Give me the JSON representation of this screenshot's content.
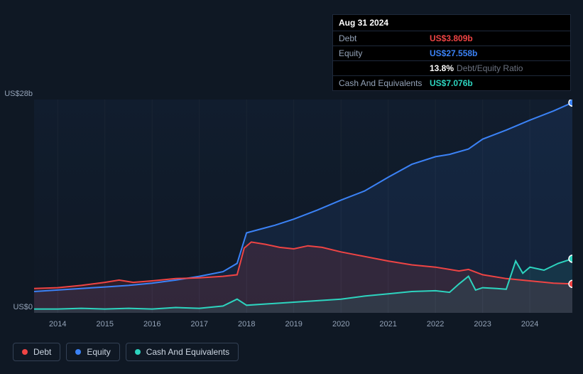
{
  "tooltip": {
    "date": "Aug 31 2024",
    "debt_label": "Debt",
    "debt_value": "US$3.809b",
    "equity_label": "Equity",
    "equity_value": "US$27.558b",
    "ratio_value": "13.8%",
    "ratio_label": "Debt/Equity Ratio",
    "cash_label": "Cash And Equivalents",
    "cash_value": "US$7.076b"
  },
  "chart": {
    "type": "area",
    "background_color": "#0f1824",
    "plot_background": "linear-gradient(#0f1824,#111d2e)",
    "y_top_label": "US$28b",
    "y_bottom_label": "US$0",
    "ylim": [
      0,
      28
    ],
    "xlim": [
      2013.5,
      2024.9
    ],
    "x_ticks": [
      2014,
      2015,
      2016,
      2017,
      2018,
      2019,
      2020,
      2021,
      2022,
      2023,
      2024
    ],
    "grid_color": "#1a2533",
    "series": {
      "equity": {
        "label": "Equity",
        "color": "#3b82f6",
        "fill": "rgba(59,130,246,0.10)",
        "stroke_width": 2,
        "data": [
          [
            2013.5,
            2.8
          ],
          [
            2014.0,
            3.0
          ],
          [
            2014.5,
            3.2
          ],
          [
            2015.0,
            3.4
          ],
          [
            2015.5,
            3.6
          ],
          [
            2016.0,
            3.9
          ],
          [
            2016.5,
            4.3
          ],
          [
            2017.0,
            4.8
          ],
          [
            2017.5,
            5.4
          ],
          [
            2017.8,
            6.5
          ],
          [
            2018.0,
            10.5
          ],
          [
            2018.3,
            11.0
          ],
          [
            2018.6,
            11.5
          ],
          [
            2019.0,
            12.3
          ],
          [
            2019.5,
            13.5
          ],
          [
            2020.0,
            14.8
          ],
          [
            2020.5,
            16.0
          ],
          [
            2021.0,
            17.8
          ],
          [
            2021.5,
            19.5
          ],
          [
            2022.0,
            20.5
          ],
          [
            2022.3,
            20.8
          ],
          [
            2022.7,
            21.5
          ],
          [
            2023.0,
            22.8
          ],
          [
            2023.5,
            24.0
          ],
          [
            2024.0,
            25.3
          ],
          [
            2024.5,
            26.5
          ],
          [
            2024.9,
            27.6
          ]
        ]
      },
      "debt": {
        "label": "Debt",
        "color": "#ef4444",
        "fill": "rgba(239,68,68,0.14)",
        "stroke_width": 2,
        "data": [
          [
            2013.5,
            3.2
          ],
          [
            2014.0,
            3.3
          ],
          [
            2014.5,
            3.6
          ],
          [
            2015.0,
            4.0
          ],
          [
            2015.3,
            4.3
          ],
          [
            2015.6,
            4.0
          ],
          [
            2016.0,
            4.2
          ],
          [
            2016.5,
            4.5
          ],
          [
            2017.0,
            4.6
          ],
          [
            2017.5,
            4.8
          ],
          [
            2017.8,
            5.0
          ],
          [
            2017.95,
            8.5
          ],
          [
            2018.1,
            9.3
          ],
          [
            2018.4,
            9.0
          ],
          [
            2018.7,
            8.6
          ],
          [
            2019.0,
            8.4
          ],
          [
            2019.3,
            8.8
          ],
          [
            2019.6,
            8.6
          ],
          [
            2020.0,
            8.0
          ],
          [
            2020.5,
            7.4
          ],
          [
            2021.0,
            6.8
          ],
          [
            2021.5,
            6.3
          ],
          [
            2022.0,
            6.0
          ],
          [
            2022.5,
            5.5
          ],
          [
            2022.7,
            5.7
          ],
          [
            2023.0,
            5.0
          ],
          [
            2023.5,
            4.5
          ],
          [
            2024.0,
            4.2
          ],
          [
            2024.5,
            3.9
          ],
          [
            2024.9,
            3.8
          ]
        ]
      },
      "cash": {
        "label": "Cash And Equivalents",
        "color": "#2dd4bf",
        "fill": "rgba(45,212,191,0.10)",
        "stroke_width": 2,
        "data": [
          [
            2013.5,
            0.5
          ],
          [
            2014.0,
            0.5
          ],
          [
            2014.5,
            0.6
          ],
          [
            2015.0,
            0.5
          ],
          [
            2015.5,
            0.6
          ],
          [
            2016.0,
            0.5
          ],
          [
            2016.5,
            0.7
          ],
          [
            2017.0,
            0.6
          ],
          [
            2017.5,
            0.9
          ],
          [
            2017.8,
            1.8
          ],
          [
            2018.0,
            1.0
          ],
          [
            2018.5,
            1.2
          ],
          [
            2019.0,
            1.4
          ],
          [
            2019.5,
            1.6
          ],
          [
            2020.0,
            1.8
          ],
          [
            2020.5,
            2.2
          ],
          [
            2021.0,
            2.5
          ],
          [
            2021.5,
            2.8
          ],
          [
            2022.0,
            2.9
          ],
          [
            2022.3,
            2.7
          ],
          [
            2022.5,
            3.8
          ],
          [
            2022.7,
            4.8
          ],
          [
            2022.85,
            3.0
          ],
          [
            2023.0,
            3.3
          ],
          [
            2023.3,
            3.2
          ],
          [
            2023.5,
            3.1
          ],
          [
            2023.7,
            6.8
          ],
          [
            2023.85,
            5.2
          ],
          [
            2024.0,
            6.0
          ],
          [
            2024.3,
            5.6
          ],
          [
            2024.6,
            6.5
          ],
          [
            2024.9,
            7.1
          ]
        ]
      }
    },
    "marker_x": 2024.9,
    "markers": [
      {
        "series": "equity",
        "y": 27.6,
        "color": "#3b82f6"
      },
      {
        "series": "cash",
        "y": 7.1,
        "color": "#2dd4bf"
      },
      {
        "series": "debt",
        "y": 3.8,
        "color": "#ef4444"
      }
    ]
  },
  "legend": {
    "items": [
      {
        "label": "Debt",
        "color": "#ef4444"
      },
      {
        "label": "Equity",
        "color": "#3b82f6"
      },
      {
        "label": "Cash And Equivalents",
        "color": "#2dd4bf"
      }
    ]
  }
}
